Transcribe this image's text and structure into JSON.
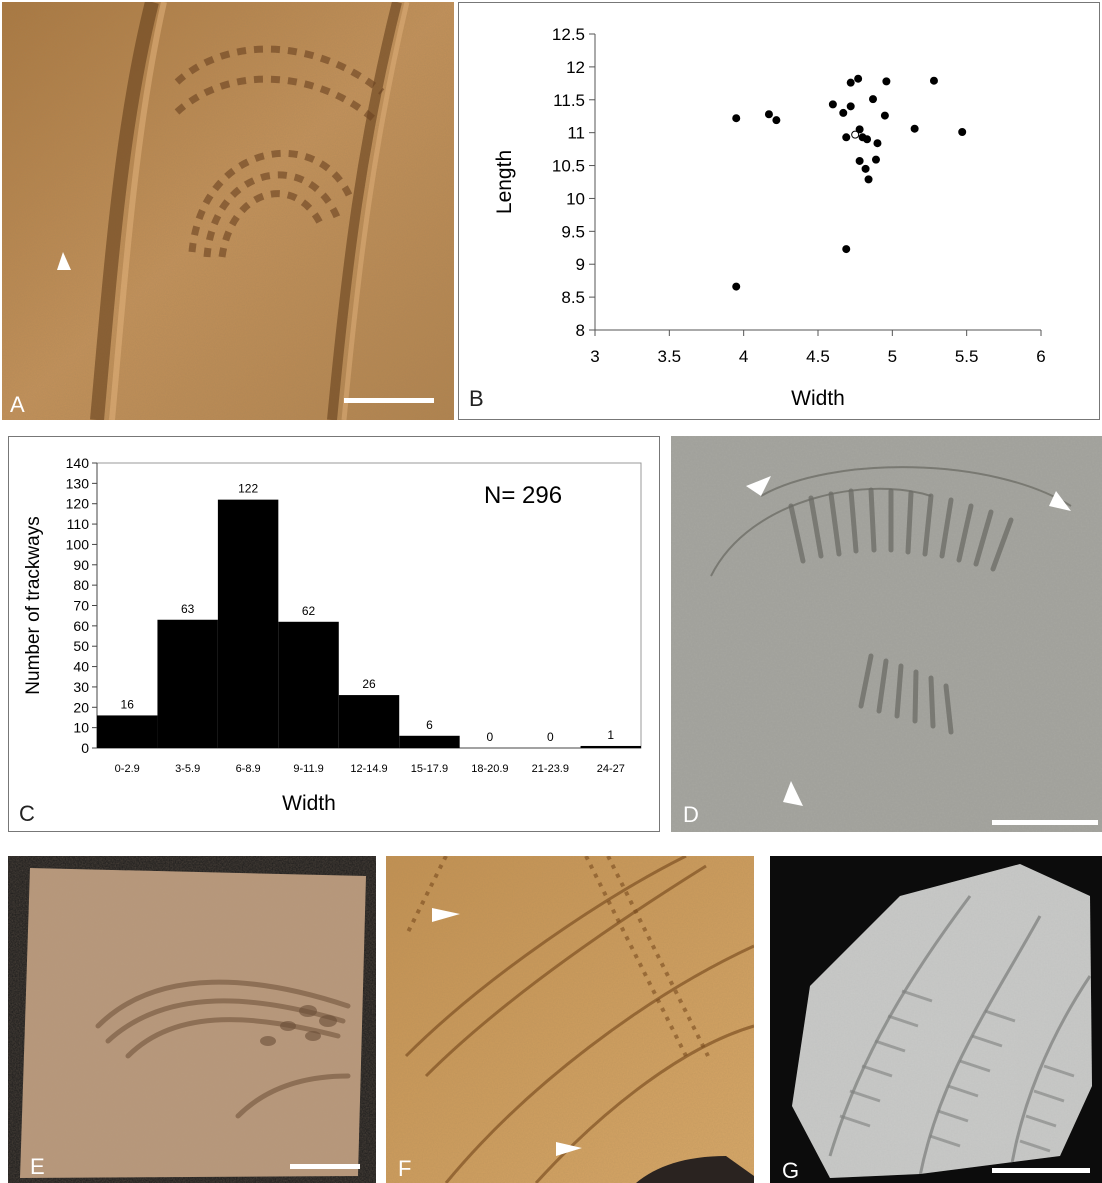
{
  "panels": {
    "A": {
      "letter": "A"
    },
    "B": {
      "letter": "B"
    },
    "C": {
      "letter": "C"
    },
    "D": {
      "letter": "D"
    },
    "E": {
      "letter": "E"
    },
    "F": {
      "letter": "F"
    },
    "G": {
      "letter": "G"
    }
  },
  "colors": {
    "sandstone": "#b98a58",
    "grey_slab": "#a9a9a2",
    "black_bar": "#000000"
  },
  "chart_data": [
    {
      "panel": "B",
      "type": "scatter",
      "title": "",
      "xlabel": "Width",
      "ylabel": "Length",
      "xlim": [
        3,
        6
      ],
      "ylim": [
        8,
        12.5
      ],
      "x_ticks": [
        3,
        3.5,
        4,
        4.5,
        5,
        5.5,
        6
      ],
      "y_ticks": [
        8,
        8.5,
        9,
        9.5,
        10,
        10.5,
        11,
        11.5,
        12,
        12.5
      ],
      "grid": false,
      "series": [
        {
          "marker": "filled",
          "points": [
            [
              3.95,
              11.22
            ],
            [
              4.17,
              11.28
            ],
            [
              4.22,
              11.19
            ],
            [
              4.6,
              11.43
            ],
            [
              4.67,
              11.3
            ],
            [
              4.72,
              11.4
            ],
            [
              4.72,
              11.76
            ],
            [
              4.77,
              11.82
            ],
            [
              4.87,
              11.51
            ],
            [
              4.96,
              11.78
            ],
            [
              5.28,
              11.79
            ],
            [
              4.95,
              11.26
            ],
            [
              5.15,
              11.06
            ],
            [
              5.47,
              11.01
            ],
            [
              4.69,
              10.93
            ],
            [
              4.78,
              11.05
            ],
            [
              4.8,
              10.93
            ],
            [
              4.83,
              10.9
            ],
            [
              4.9,
              10.84
            ],
            [
              4.78,
              10.57
            ],
            [
              4.82,
              10.45
            ],
            [
              4.89,
              10.59
            ],
            [
              4.84,
              10.29
            ],
            [
              4.69,
              9.23
            ],
            [
              3.95,
              8.66
            ]
          ]
        },
        {
          "marker": "open",
          "points": [
            [
              4.75,
              10.97
            ]
          ]
        }
      ]
    },
    {
      "panel": "C",
      "type": "bar",
      "title": "",
      "annotation": "N= 296",
      "xlabel": "Width",
      "ylabel": "Number of trackways",
      "ylim": [
        0,
        140
      ],
      "y_ticks": [
        0,
        10,
        20,
        30,
        40,
        50,
        60,
        70,
        80,
        90,
        100,
        110,
        120,
        130,
        140
      ],
      "categories": [
        "0-2.9",
        "3-5.9",
        "6-8.9",
        "9-11.9",
        "12-14.9",
        "15-17.9",
        "18-20.9",
        "21-23.9",
        "24-27"
      ],
      "values": [
        16,
        63,
        122,
        62,
        26,
        6,
        0,
        0,
        1
      ],
      "bar_color": "#000000",
      "grid": false
    }
  ]
}
